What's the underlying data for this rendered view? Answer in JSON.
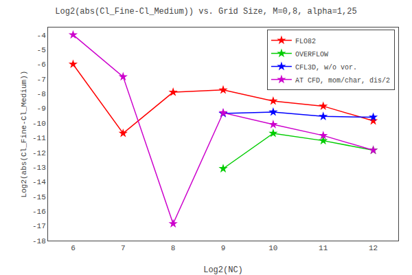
{
  "chart_data": {
    "type": "line",
    "title": "Log2(abs(Cl_Fine-Cl_Medium)) vs. Grid Size, M=0,8, alpha=1,25",
    "xlabel": "Log2(NC)",
    "ylabel": "Log2(abs(Cl_Fine-Cl_Medium))",
    "xlim": [
      5.5,
      12.5
    ],
    "ylim": [
      -18,
      -3.5
    ],
    "xticks": [
      6,
      7,
      8,
      9,
      10,
      11,
      12
    ],
    "yticks": [
      -18,
      -17,
      -16,
      -15,
      -14,
      -13,
      -12,
      -11,
      -10,
      -9,
      -8,
      -7,
      -6,
      -5,
      -4
    ],
    "grid": false,
    "legend": "upper right",
    "marker": "star",
    "series": [
      {
        "name": "FLO82",
        "color": "#ff0000",
        "x": [
          6,
          7,
          8,
          9,
          10,
          11,
          12
        ],
        "values": [
          -6.0,
          -10.7,
          -7.9,
          -7.75,
          -8.5,
          -8.85,
          -9.85
        ]
      },
      {
        "name": "OVERFLOW",
        "color": "#00cc00",
        "x": [
          9,
          10,
          11,
          12
        ],
        "values": [
          -13.1,
          -10.7,
          -11.2,
          -11.85
        ]
      },
      {
        "name": "CFL3D, w/o vor.",
        "color": "#0000ff",
        "x": [
          9,
          10,
          11,
          12
        ],
        "values": [
          -9.35,
          -9.25,
          -9.55,
          -9.6
        ]
      },
      {
        "name": "AT CFD, mom/char, dis/2",
        "color": "#cc00cc",
        "x": [
          6,
          7,
          8,
          9,
          10,
          11,
          12
        ],
        "values": [
          -4.0,
          -6.85,
          -16.85,
          -9.3,
          -10.1,
          -10.85,
          -11.85
        ]
      }
    ]
  }
}
